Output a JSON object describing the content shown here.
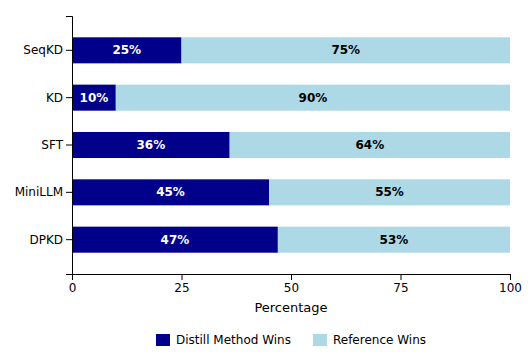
{
  "chart_data": {
    "type": "bar",
    "orientation": "horizontal",
    "stacked": true,
    "categories": [
      "DPKD",
      "MiniLLM",
      "SFT",
      "KD",
      "SeqKD"
    ],
    "series": [
      {
        "name": "Distill Method Wins",
        "color": "#00008B",
        "values": [
          47,
          45,
          36,
          10,
          25
        ],
        "value_labels": [
          "47%",
          "45%",
          "36%",
          "10%",
          "25%"
        ]
      },
      {
        "name": "Reference Wins",
        "color": "#ADD8E6",
        "values": [
          53,
          55,
          64,
          90,
          75
        ],
        "value_labels": [
          "53%",
          "55%",
          "64%",
          "90%",
          "75%"
        ]
      }
    ],
    "x_label": "Percentage",
    "xlim": [
      0,
      100
    ],
    "xticks": [
      0,
      25,
      50,
      75,
      100
    ],
    "data_labels": true,
    "grid": false,
    "legend": "bottom"
  }
}
